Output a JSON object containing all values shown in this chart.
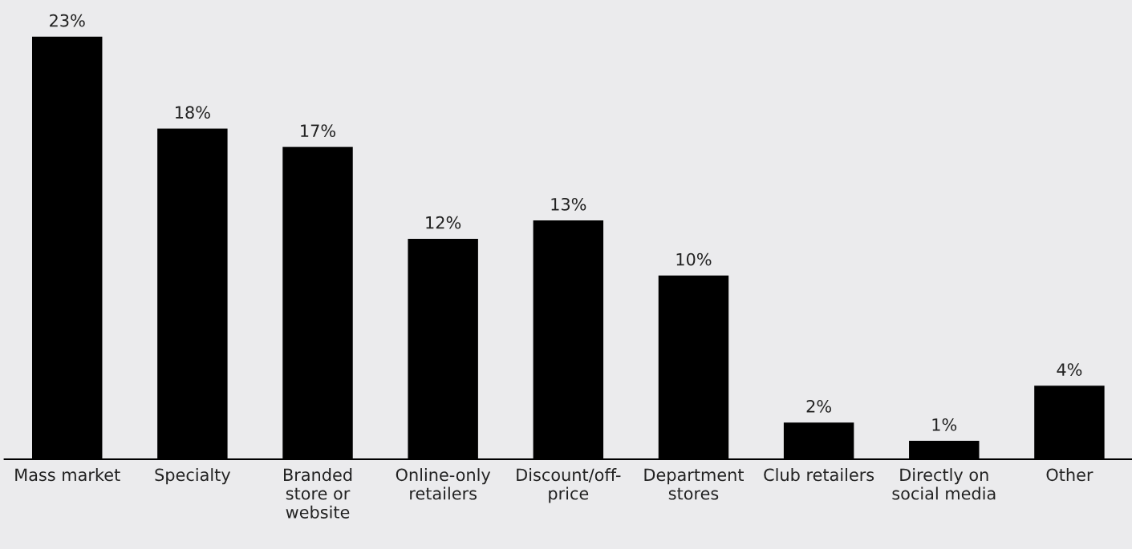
{
  "chart_data": {
    "type": "bar",
    "categories": [
      "Mass market",
      "Specialty",
      "Branded\nstore or\nwebsite",
      "Online-only\nretailers",
      "Discount/off-\nprice",
      "Department\nstores",
      "Club retailers",
      "Directly on\nsocial media",
      "Other"
    ],
    "values": [
      23,
      18,
      17,
      12,
      13,
      10,
      2,
      1,
      4
    ],
    "value_labels": [
      "23%",
      "18%",
      "17%",
      "12%",
      "13%",
      "10%",
      "2%",
      "1%",
      "4%"
    ],
    "color": "#000000",
    "ylim": [
      0,
      25
    ],
    "tick_labels": "x",
    "grid": false,
    "legend": false
  }
}
